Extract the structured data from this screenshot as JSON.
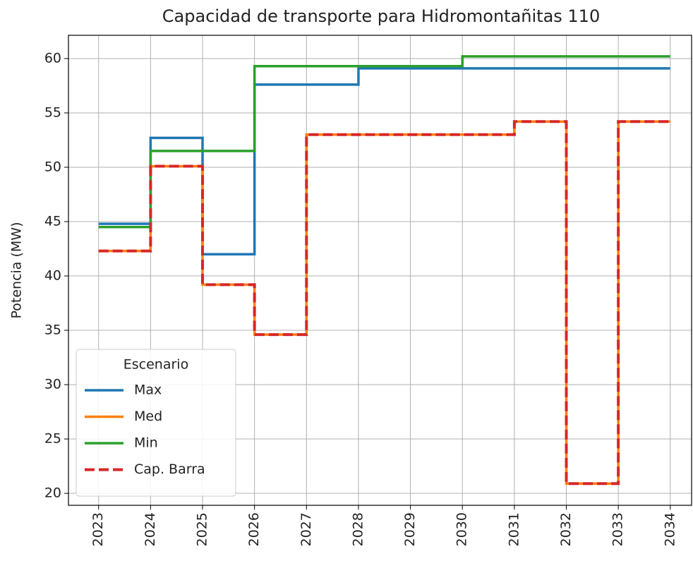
{
  "chart_data": {
    "type": "step",
    "title": "Capacidad de transporte para Hidromontañitas 110",
    "y_label": "Potencia (MW)",
    "x": [
      2023,
      2024,
      2025,
      2026,
      2027,
      2028,
      2029,
      2030,
      2031,
      2032,
      2033,
      2034
    ],
    "series": [
      {
        "name": "Max",
        "color": "#1f77b4",
        "values": [
          44.8,
          52.7,
          42.0,
          57.6,
          57.6,
          59.1,
          59.1,
          59.1,
          59.1,
          59.1,
          59.1,
          59.1
        ]
      },
      {
        "name": "Med",
        "color": "#ff7f0e",
        "values": [
          42.3,
          50.1,
          39.2,
          34.6,
          53.0,
          53.0,
          53.0,
          53.0,
          54.2,
          20.9,
          54.2,
          54.2
        ]
      },
      {
        "name": "Min",
        "color": "#2ca02c",
        "values": [
          44.5,
          51.5,
          51.5,
          59.3,
          59.3,
          59.3,
          59.3,
          60.2,
          60.2,
          60.2,
          60.2,
          60.2
        ]
      },
      {
        "name": "Cap. Barra",
        "color": "#d62728",
        "dashed": true,
        "values": [
          42.3,
          50.1,
          39.2,
          34.6,
          53.0,
          53.0,
          53.0,
          53.0,
          54.2,
          20.9,
          54.2,
          54.2
        ]
      }
    ],
    "legend_title": "Escenario",
    "legend": "lower left",
    "grid": true,
    "xlim": [
      2022.42,
      2034.41
    ],
    "xticks": [
      2023,
      2024,
      2025,
      2026,
      2027,
      2028,
      2029,
      2030,
      2031,
      2032,
      2033,
      2034
    ],
    "ylim": [
      18.9,
      62.14
    ],
    "yticks": [
      20,
      25,
      30,
      35,
      40,
      45,
      50,
      55,
      60
    ]
  }
}
